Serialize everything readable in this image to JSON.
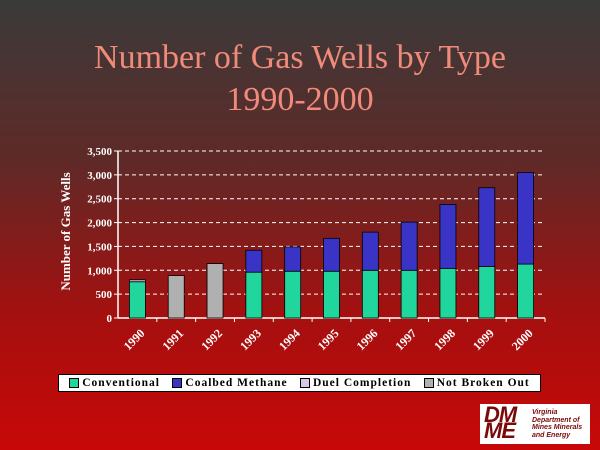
{
  "slide": {
    "title_line1": "Number of Gas Wells by Type",
    "title_line2": "1990-2000"
  },
  "chart_data": {
    "type": "bar",
    "stacked": true,
    "title": "Number of Gas Wells by Type 1990-2000",
    "ylabel": "Number of Gas Wells",
    "xlabel": "",
    "ylim": [
      0,
      3500
    ],
    "yticks": [
      "0",
      "500",
      "1,000",
      "1,500",
      "2,000",
      "2,500",
      "3,000",
      "3,500"
    ],
    "ytick_values": [
      0,
      500,
      1000,
      1500,
      2000,
      2500,
      3000,
      3500
    ],
    "grid": true,
    "legend_position": "bottom",
    "categories": [
      "1990",
      "1991",
      "1992",
      "1993",
      "1994",
      "1995",
      "1996",
      "1997",
      "1998",
      "1999",
      "2000"
    ],
    "series": [
      {
        "name": "Conventional",
        "color": "#20d69c",
        "values": [
          760,
          0,
          0,
          960,
          980,
          980,
          1000,
          1000,
          1040,
          1080,
          1130
        ]
      },
      {
        "name": "Coalbed Methane",
        "color": "#3a34c6",
        "values": [
          0,
          0,
          0,
          460,
          510,
          690,
          800,
          1010,
          1340,
          1650,
          1920
        ]
      },
      {
        "name": "Duel Completion",
        "color": "#d8c8e8",
        "values": [
          40,
          0,
          0,
          0,
          0,
          0,
          0,
          0,
          0,
          0,
          0
        ]
      },
      {
        "name": "Not Broken Out",
        "color": "#b0b0b0",
        "values": [
          0,
          890,
          1140,
          0,
          0,
          0,
          0,
          0,
          0,
          0,
          0
        ]
      }
    ]
  },
  "logo": {
    "mark_top": "DM",
    "mark_bottom": "ME",
    "text_lines": [
      "Virginia",
      "Department of",
      "Mines Minerals",
      "and Energy"
    ]
  }
}
